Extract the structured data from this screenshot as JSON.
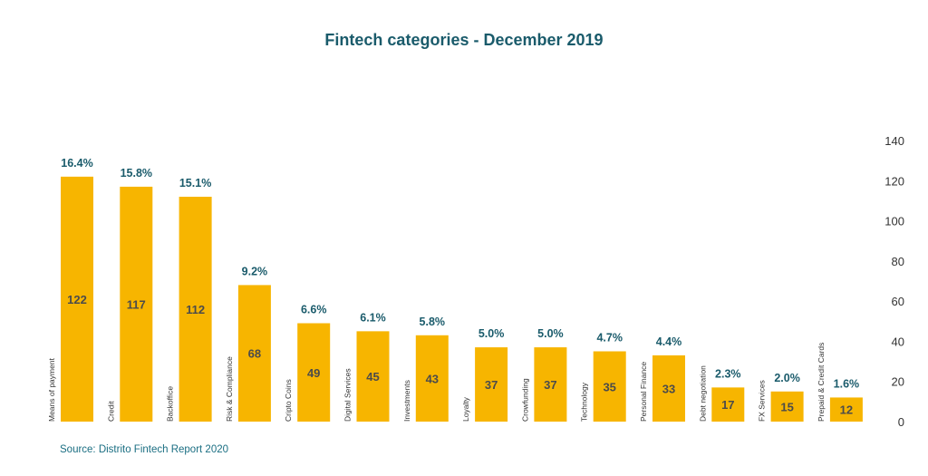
{
  "title": "Fintech categories - December 2019",
  "source": "Source: Distrito Fintech Report 2020",
  "colors": {
    "bar": "#f7b500",
    "title": "#1a5b6b",
    "source": "#1a6e82"
  },
  "chart_data": {
    "type": "bar",
    "title": "Fintech categories - December 2019",
    "xlabel": "",
    "ylabel": "",
    "ylim": [
      0,
      140
    ],
    "y_ticks": [
      0,
      20,
      40,
      60,
      80,
      100,
      120,
      140
    ],
    "y_axis_side": "right",
    "grid": false,
    "categories": [
      "Means of payment",
      "Credit",
      "Backoffice",
      "Risk & Compliance",
      "Cripto Coins",
      "Digital Services",
      "Investments",
      "Loyalty",
      "Crowfunding",
      "Technology",
      "Personal Finance",
      "Debt negotiation",
      "FX Services",
      "Prepaid & Credit Cards"
    ],
    "values": [
      122,
      117,
      112,
      68,
      49,
      45,
      43,
      37,
      37,
      35,
      33,
      17,
      15,
      12
    ],
    "percent_labels": [
      "16.4%",
      "15.8%",
      "15.1%",
      "9.2%",
      "6.6%",
      "6.1%",
      "5.8%",
      "5.0%",
      "5.0%",
      "4.7%",
      "4.4%",
      "2.3%",
      "2.0%",
      "1.6%"
    ]
  }
}
